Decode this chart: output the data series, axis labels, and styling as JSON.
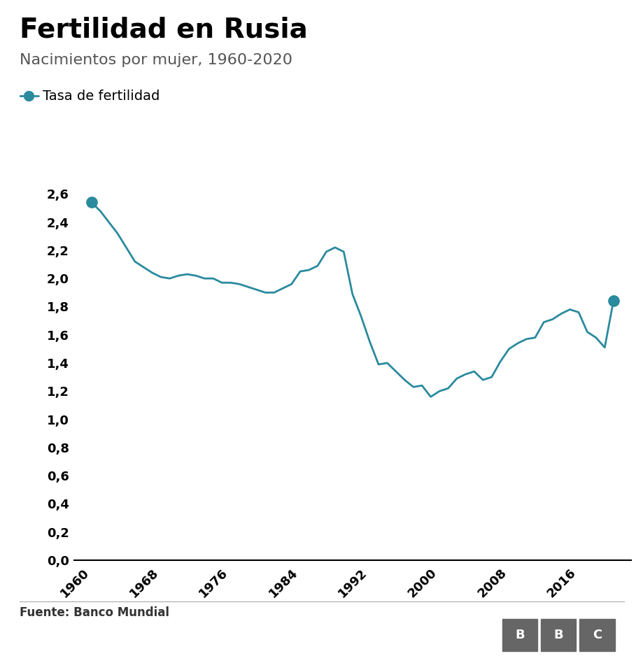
{
  "title": "Fertilidad en Rusia",
  "subtitle": "Nacimientos por mujer, 1960-2020",
  "legend_label": "Tasa de fertilidad",
  "source": "Fuente: Banco Mundial",
  "line_color": "#2a8a9e",
  "background_color": "#ffffff",
  "title_fontsize": 28,
  "subtitle_fontsize": 16,
  "legend_fontsize": 14,
  "years": [
    1960,
    1961,
    1962,
    1963,
    1964,
    1965,
    1966,
    1967,
    1968,
    1969,
    1970,
    1971,
    1972,
    1973,
    1974,
    1975,
    1976,
    1977,
    1978,
    1979,
    1980,
    1981,
    1982,
    1983,
    1984,
    1985,
    1986,
    1987,
    1988,
    1989,
    1990,
    1991,
    1992,
    1993,
    1994,
    1995,
    1996,
    1997,
    1998,
    1999,
    2000,
    2001,
    2002,
    2003,
    2004,
    2005,
    2006,
    2007,
    2008,
    2009,
    2010,
    2011,
    2012,
    2013,
    2014,
    2015,
    2016,
    2017,
    2018,
    2019,
    2020
  ],
  "values": [
    2.54,
    2.48,
    2.4,
    2.32,
    2.22,
    2.12,
    2.08,
    2.04,
    2.01,
    2.0,
    2.02,
    2.03,
    2.02,
    2.0,
    2.0,
    1.97,
    1.97,
    1.96,
    1.94,
    1.92,
    1.9,
    1.9,
    1.93,
    1.96,
    2.05,
    2.06,
    2.09,
    2.19,
    2.22,
    2.19,
    1.89,
    1.73,
    1.55,
    1.39,
    1.4,
    1.34,
    1.28,
    1.23,
    1.24,
    1.16,
    1.2,
    1.22,
    1.29,
    1.32,
    1.34,
    1.28,
    1.3,
    1.41,
    1.5,
    1.54,
    1.57,
    1.58,
    1.69,
    1.71,
    1.75,
    1.78,
    1.76,
    1.62,
    1.58,
    1.51,
    1.84
  ],
  "ylim": [
    0.0,
    2.8
  ],
  "yticks": [
    0.0,
    0.2,
    0.4,
    0.6,
    0.8,
    1.0,
    1.2,
    1.4,
    1.6,
    1.8,
    2.0,
    2.2,
    2.4,
    2.6
  ],
  "xticks": [
    1960,
    1968,
    1976,
    1984,
    1992,
    2000,
    2008,
    2016
  ],
  "xlim": [
    1958,
    2022
  ]
}
